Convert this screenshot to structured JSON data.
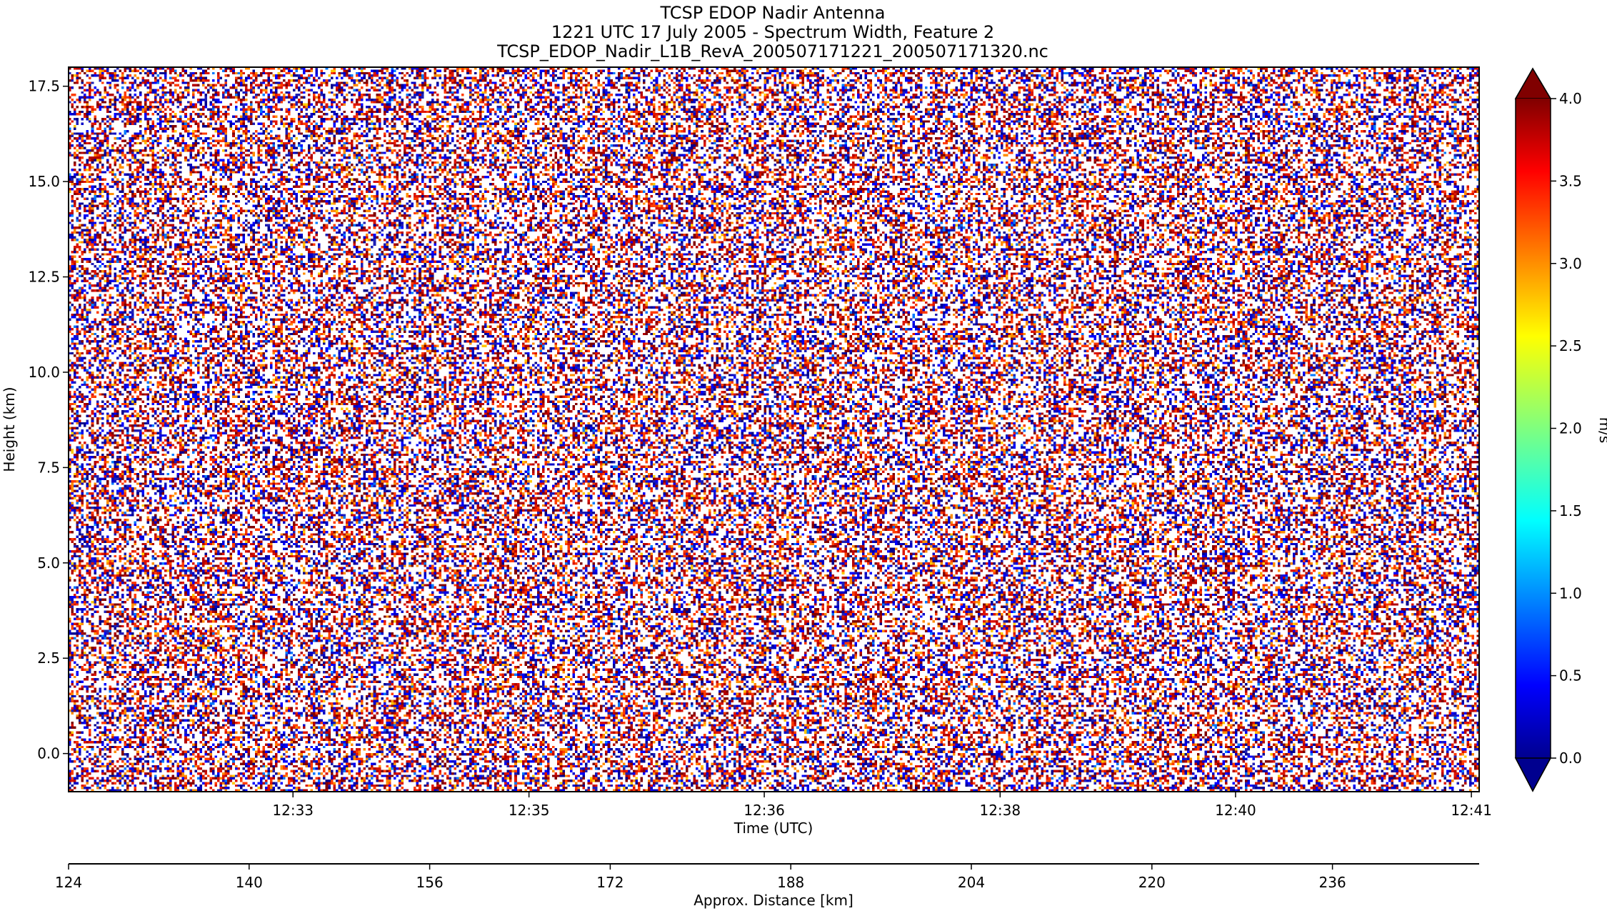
{
  "chart_data": {
    "type": "heatmap",
    "title": "TCSP EDOP Nadir Antenna",
    "subtitle": "1221 UTC 17 July 2005 - Spectrum Width, Feature 2",
    "filename": "TCSP_EDOP_Nadir_L1B_RevA_200507171221_200507171320.nc",
    "xlabel": "Time (UTC)",
    "ylabel": "Height (km)",
    "x_ticks": [
      "12:33",
      "12:35",
      "12:36",
      "12:38",
      "12:40",
      "12:41"
    ],
    "x_tick_fractions": [
      0.1591,
      0.3264,
      0.4932,
      0.6604,
      0.8273,
      0.9945
    ],
    "ylim": [
      -1.0,
      18.0
    ],
    "y_ticks": [
      0.0,
      2.5,
      5.0,
      7.5,
      10.0,
      12.5,
      15.0,
      17.5
    ],
    "y_tick_labels": [
      "0.0",
      "2.5",
      "5.0",
      "7.5",
      "10.0",
      "12.5",
      "15.0",
      "17.5"
    ],
    "secondary_xaxis": {
      "label": "Approx. Distance [km]",
      "xlim": [
        124,
        249
      ],
      "ticks": [
        124,
        140,
        156,
        172,
        188,
        204,
        220,
        236
      ]
    },
    "colorbar": {
      "label": "m/s",
      "colormap": "jet",
      "range": [
        0.0,
        4.0
      ],
      "extend": "both",
      "ticks": [
        0.0,
        0.5,
        1.0,
        1.5,
        2.0,
        2.5,
        3.0,
        3.5,
        4.0
      ],
      "tick_labels": [
        "0.0",
        "0.5",
        "1.0",
        "1.5",
        "2.0",
        "2.5",
        "3.0",
        "3.5",
        "4.0"
      ]
    },
    "field_description": "noise-dominated spectrum width field",
    "grid": false
  }
}
